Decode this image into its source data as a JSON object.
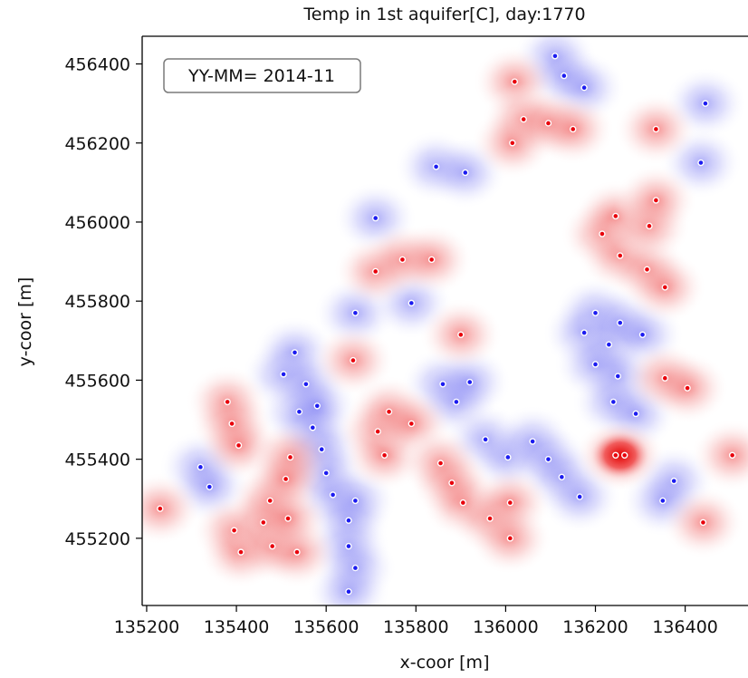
{
  "chart_data": {
    "type": "heatmap",
    "title": "Temp in 1st aquifer[C], day:1770",
    "xlabel": "x-coor [m]",
    "ylabel": "y-coor [m]",
    "xlim": [
      135190,
      136540
    ],
    "ylim": [
      455030,
      456470
    ],
    "xticks": [
      135200,
      135400,
      135600,
      135800,
      136000,
      136200,
      136400
    ],
    "yticks": [
      455200,
      455400,
      455600,
      455800,
      456000,
      456200,
      456400
    ],
    "stamp": "YY-MM= 2014-11",
    "colors": {
      "warm": "#e8000b",
      "cold": "#1c1cf0",
      "neutral": "#ffffff",
      "well_marker": "#ffffff"
    },
    "warm_wells": [
      [
        135230,
        455275
      ],
      [
        135380,
        455545
      ],
      [
        135390,
        455490
      ],
      [
        135405,
        455435
      ],
      [
        135395,
        455220
      ],
      [
        135410,
        455165
      ],
      [
        135460,
        455240
      ],
      [
        135475,
        455295
      ],
      [
        135480,
        455180
      ],
      [
        135535,
        455165
      ],
      [
        135515,
        455250
      ],
      [
        135520,
        455405
      ],
      [
        135510,
        455350
      ],
      [
        135660,
        455650
      ],
      [
        135715,
        455470
      ],
      [
        135730,
        455410
      ],
      [
        135740,
        455520
      ],
      [
        135790,
        455490
      ],
      [
        135710,
        455875
      ],
      [
        135770,
        455905
      ],
      [
        135835,
        455905
      ],
      [
        135855,
        455390
      ],
      [
        135880,
        455340
      ],
      [
        135905,
        455290
      ],
      [
        135900,
        455715
      ],
      [
        135965,
        455250
      ],
      [
        136010,
        455290
      ],
      [
        136010,
        455200
      ],
      [
        136020,
        456355
      ],
      [
        136040,
        456260
      ],
      [
        136015,
        456200
      ],
      [
        136095,
        456250
      ],
      [
        136150,
        456235
      ],
      [
        136215,
        455970
      ],
      [
        136245,
        456015
      ],
      [
        136255,
        455915
      ],
      [
        136315,
        455880
      ],
      [
        136320,
        455990
      ],
      [
        136335,
        456055
      ],
      [
        136355,
        455835
      ],
      [
        136335,
        456235
      ],
      [
        136355,
        455605
      ],
      [
        136405,
        455580
      ],
      [
        136440,
        455240
      ],
      [
        136505,
        455410
      ],
      [
        136245,
        455410
      ],
      [
        136265,
        455410
      ]
    ],
    "cold_wells": [
      [
        135320,
        455380
      ],
      [
        135340,
        455330
      ],
      [
        135505,
        455615
      ],
      [
        135530,
        455670
      ],
      [
        135540,
        455520
      ],
      [
        135555,
        455590
      ],
      [
        135570,
        455480
      ],
      [
        135580,
        455535
      ],
      [
        135590,
        455425
      ],
      [
        135600,
        455365
      ],
      [
        135615,
        455310
      ],
      [
        135665,
        455295
      ],
      [
        135650,
        455245
      ],
      [
        135650,
        455180
      ],
      [
        135665,
        455125
      ],
      [
        135650,
        455065
      ],
      [
        135665,
        455770
      ],
      [
        135710,
        456010
      ],
      [
        135790,
        455795
      ],
      [
        135860,
        455590
      ],
      [
        135890,
        455545
      ],
      [
        135920,
        455595
      ],
      [
        135955,
        455450
      ],
      [
        136005,
        455405
      ],
      [
        136060,
        455445
      ],
      [
        136095,
        455400
      ],
      [
        136125,
        455355
      ],
      [
        136165,
        455305
      ],
      [
        135845,
        456140
      ],
      [
        135910,
        456125
      ],
      [
        136110,
        456420
      ],
      [
        136130,
        456370
      ],
      [
        136175,
        456340
      ],
      [
        136200,
        455770
      ],
      [
        136175,
        455720
      ],
      [
        136230,
        455690
      ],
      [
        136255,
        455745
      ],
      [
        136305,
        455715
      ],
      [
        136200,
        455640
      ],
      [
        136250,
        455610
      ],
      [
        136240,
        455545
      ],
      [
        136290,
        455515
      ],
      [
        136375,
        455345
      ],
      [
        136350,
        455295
      ],
      [
        136445,
        456300
      ],
      [
        136435,
        456150
      ]
    ]
  }
}
